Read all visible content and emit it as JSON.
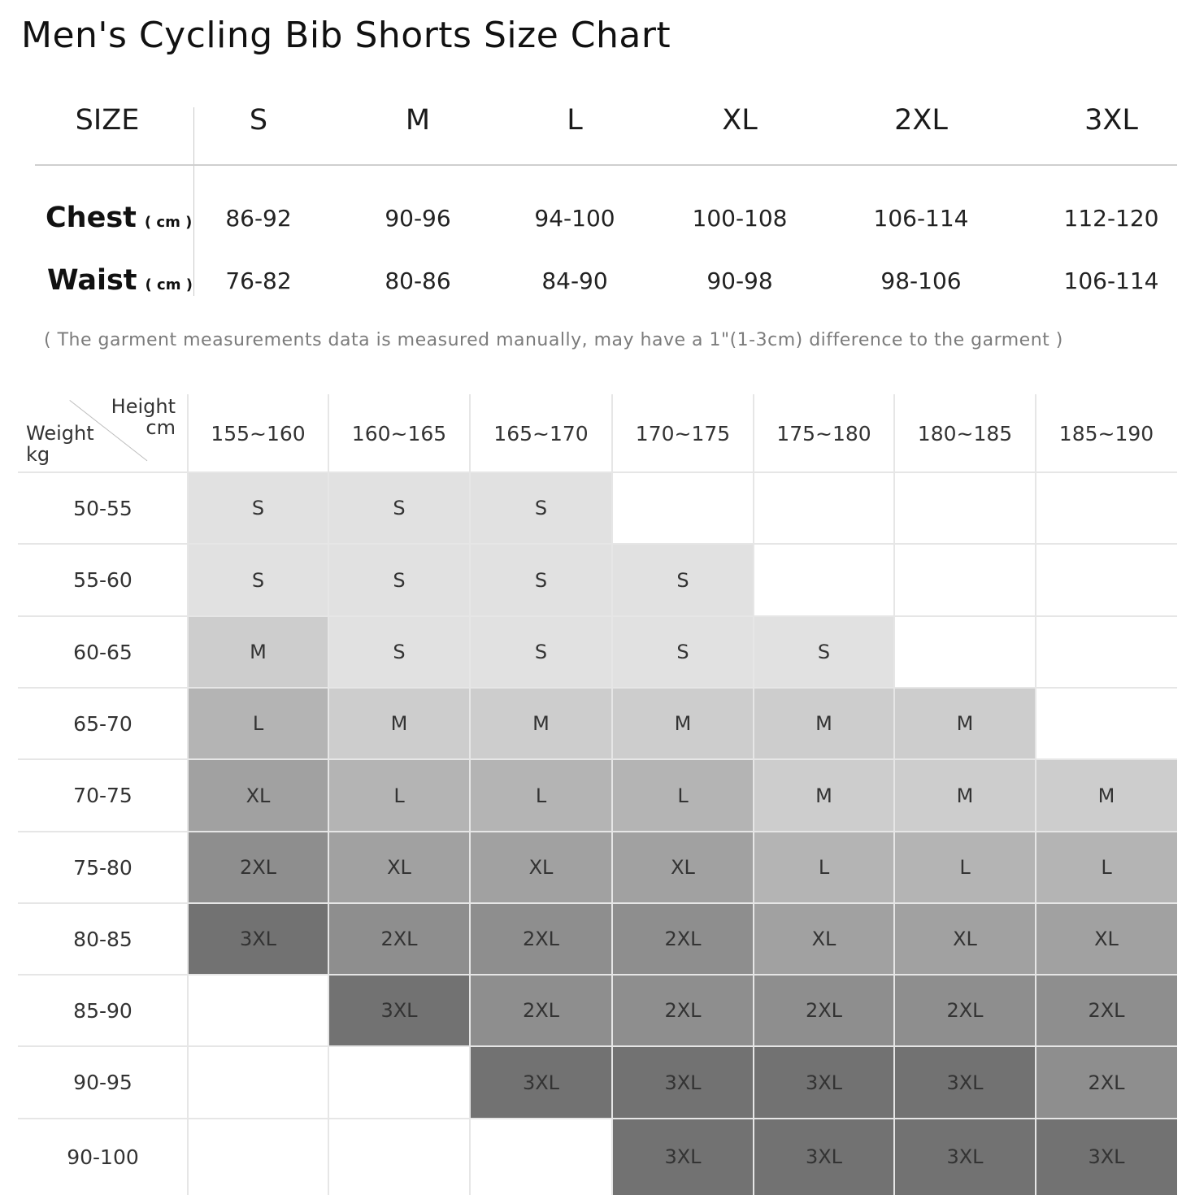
{
  "title": "Men's Cycling Bib Shorts Size Chart",
  "measurements": {
    "size_label": "SIZE",
    "sizes": [
      "S",
      "M",
      "L",
      "XL",
      "2XL",
      "3XL"
    ],
    "rows": [
      {
        "label": "Chest",
        "unit": "( cm )",
        "values": [
          "86-92",
          "90-96",
          "94-100",
          "100-108",
          "106-114",
          "112-120"
        ]
      },
      {
        "label": "Waist",
        "unit": "( cm )",
        "values": [
          "76-82",
          "80-86",
          "84-90",
          "90-98",
          "98-106",
          "106-114"
        ]
      }
    ]
  },
  "note": "( The garment measurements data is measured manually, may have a 1\"(1-3cm) difference to the garment )",
  "grid": {
    "height_label": "Height",
    "height_unit": "cm",
    "weight_label": "Weight",
    "weight_unit": "kg",
    "heights": [
      "155~160",
      "160~165",
      "165~170",
      "170~175",
      "175~180",
      "180~185",
      "185~190"
    ],
    "weights": [
      "50-55",
      "55-60",
      "60-65",
      "65-70",
      "70-75",
      "75-80",
      "80-85",
      "85-90",
      "90-95",
      "90-100"
    ],
    "cells": [
      [
        "S",
        "S",
        "S",
        "",
        "",
        "",
        ""
      ],
      [
        "S",
        "S",
        "S",
        "S",
        "",
        "",
        ""
      ],
      [
        "M",
        "S",
        "S",
        "S",
        "S",
        "",
        ""
      ],
      [
        "L",
        "M",
        "M",
        "M",
        "M",
        "M",
        ""
      ],
      [
        "XL",
        "L",
        "L",
        "L",
        "M",
        "M",
        "M"
      ],
      [
        "2XL",
        "XL",
        "XL",
        "XL",
        "L",
        "L",
        "L"
      ],
      [
        "3XL",
        "2XL",
        "2XL",
        "2XL",
        "XL",
        "XL",
        "XL"
      ],
      [
        "",
        "3XL",
        "2XL",
        "2XL",
        "2XL",
        "2XL",
        "2XL"
      ],
      [
        "",
        "",
        "3XL",
        "3XL",
        "3XL",
        "3XL",
        "2XL"
      ],
      [
        "",
        "",
        "",
        "3XL",
        "3XL",
        "3XL",
        "3XL"
      ]
    ],
    "colors": {
      "S": "#e1e1e1",
      "M": "#cdcdcd",
      "L": "#b4b4b4",
      "XL": "#a1a1a1",
      "2XL": "#8e8e8e",
      "3XL": "#727272"
    }
  }
}
